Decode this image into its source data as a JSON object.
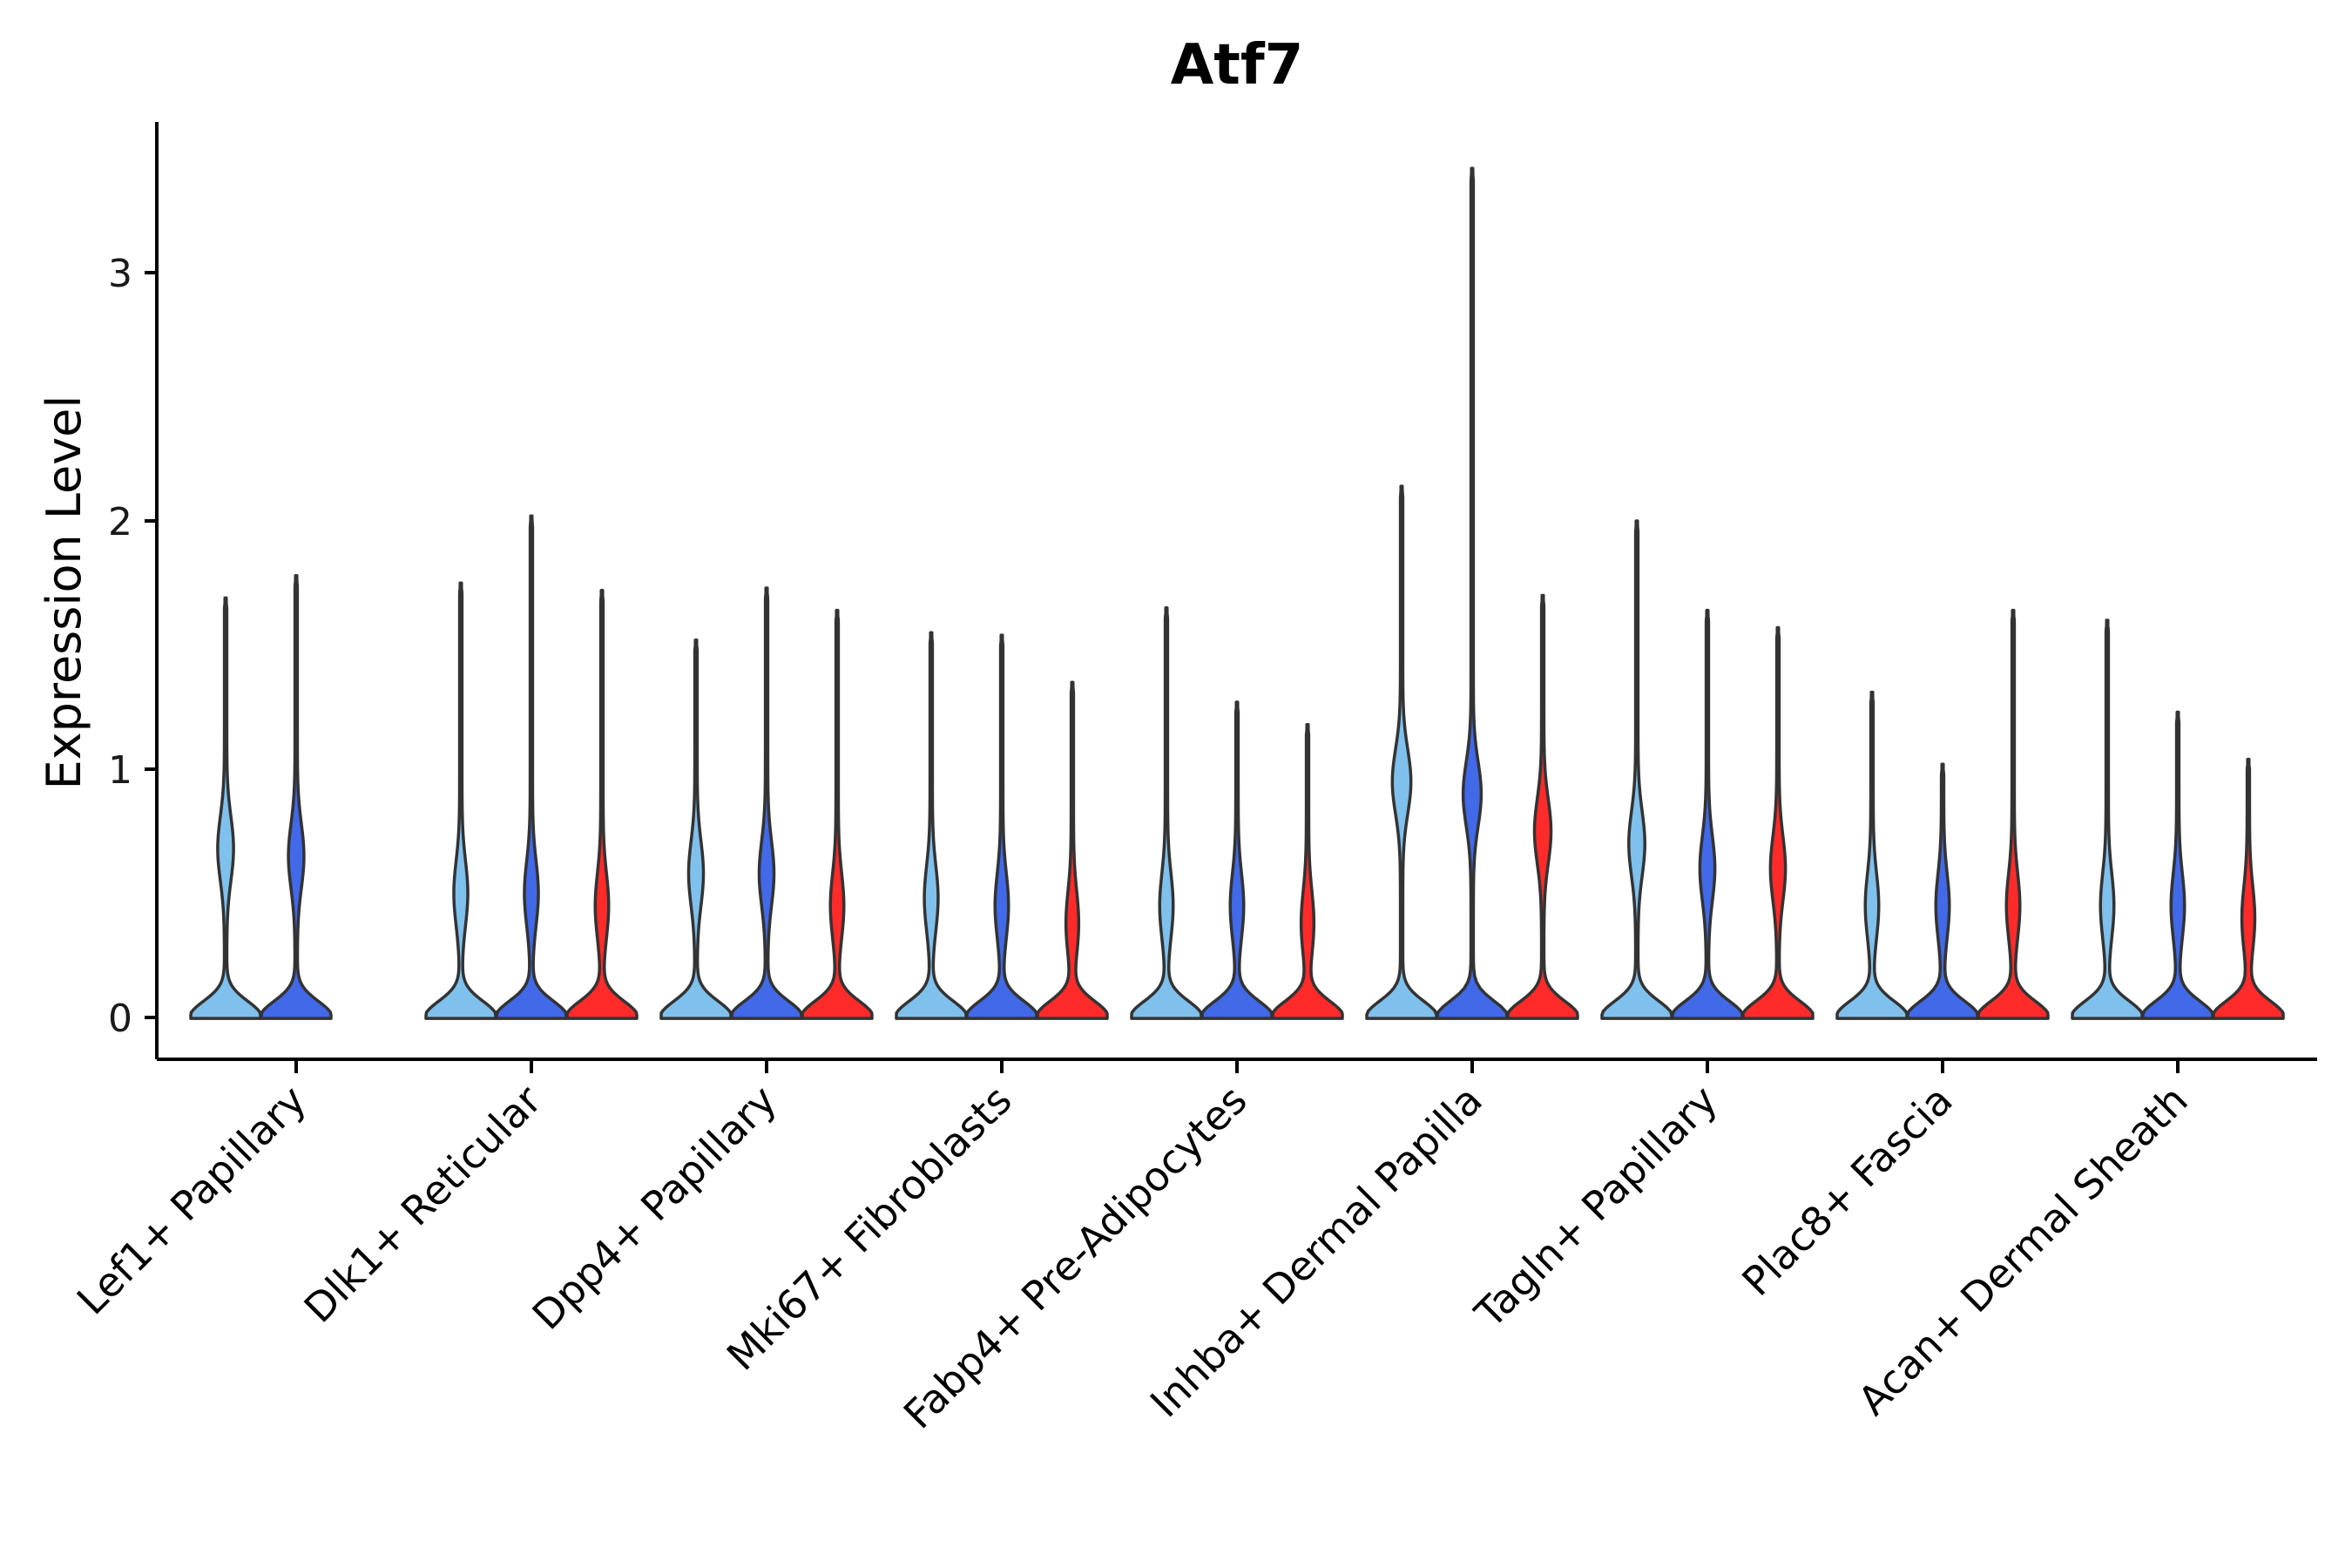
{
  "chart_data": {
    "type": "violin",
    "title": "Atf7",
    "xlabel": "",
    "ylabel": "Expression Level",
    "ylim": [
      -0.17,
      3.6
    ],
    "yticks": [
      0,
      1,
      2,
      3
    ],
    "legend": "none",
    "group_colors": [
      "#7fc0ec",
      "#4169e8",
      "#ff2a2a"
    ],
    "categories": [
      "Lef1+ Papillary",
      "Dlk1+ Reticular",
      "Dpp4+ Papillary",
      "Mki67+ Fibroblasts",
      "Fabp4+ Pre-Adipocytes",
      "Inhba+ Dermal Papilla",
      "Tagln+ Papillary",
      "Plac8+ Fascia",
      "Acan+ Dermal Sheath"
    ],
    "violins": [
      {
        "category": 0,
        "group": 0,
        "max": 1.69,
        "mode": 0.68
      },
      {
        "category": 0,
        "group": 1,
        "max": 1.78,
        "mode": 0.65
      },
      {
        "category": 1,
        "group": 0,
        "max": 1.75,
        "mode": 0.5
      },
      {
        "category": 1,
        "group": 1,
        "max": 2.02,
        "mode": 0.5
      },
      {
        "category": 1,
        "group": 2,
        "max": 1.72,
        "mode": 0.45
      },
      {
        "category": 2,
        "group": 0,
        "max": 1.52,
        "mode": 0.58
      },
      {
        "category": 2,
        "group": 1,
        "max": 1.73,
        "mode": 0.58
      },
      {
        "category": 2,
        "group": 2,
        "max": 1.64,
        "mode": 0.45
      },
      {
        "category": 3,
        "group": 0,
        "max": 1.55,
        "mode": 0.48
      },
      {
        "category": 3,
        "group": 1,
        "max": 1.54,
        "mode": 0.45
      },
      {
        "category": 3,
        "group": 2,
        "max": 1.35,
        "mode": 0.38
      },
      {
        "category": 4,
        "group": 0,
        "max": 1.65,
        "mode": 0.45
      },
      {
        "category": 4,
        "group": 1,
        "max": 1.27,
        "mode": 0.45
      },
      {
        "category": 4,
        "group": 2,
        "max": 1.18,
        "mode": 0.38
      },
      {
        "category": 5,
        "group": 0,
        "max": 2.14,
        "mode": 0.95
      },
      {
        "category": 5,
        "group": 1,
        "max": 3.42,
        "mode": 0.9
      },
      {
        "category": 5,
        "group": 2,
        "max": 1.7,
        "mode": 0.75
      },
      {
        "category": 6,
        "group": 0,
        "max": 2.0,
        "mode": 0.7
      },
      {
        "category": 6,
        "group": 1,
        "max": 1.64,
        "mode": 0.6
      },
      {
        "category": 6,
        "group": 2,
        "max": 1.57,
        "mode": 0.6
      },
      {
        "category": 7,
        "group": 0,
        "max": 1.31,
        "mode": 0.45
      },
      {
        "category": 7,
        "group": 1,
        "max": 1.02,
        "mode": 0.45
      },
      {
        "category": 7,
        "group": 2,
        "max": 1.64,
        "mode": 0.45
      },
      {
        "category": 8,
        "group": 0,
        "max": 1.6,
        "mode": 0.45
      },
      {
        "category": 8,
        "group": 1,
        "max": 1.23,
        "mode": 0.45
      },
      {
        "category": 8,
        "group": 2,
        "max": 1.04,
        "mode": 0.4
      }
    ]
  }
}
